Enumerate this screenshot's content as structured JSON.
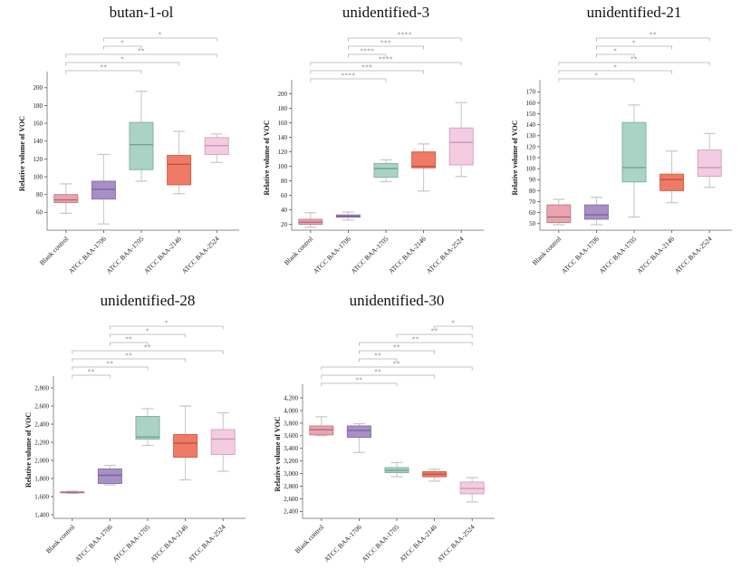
{
  "figure": {
    "ylabel": "Relative volume of VOC",
    "categories": [
      "Blank control",
      "ATCC BAA-1706",
      "ATCC BAA-1705",
      "ATCC BAA-2146",
      "ATCC BAA-2524"
    ]
  },
  "style": {
    "box_styles": [
      {
        "fill": "#e9a6b0",
        "stroke": "#c5808d",
        "median": "#b06a76"
      },
      {
        "fill": "#a890c4",
        "stroke": "#8a72ab",
        "median": "#7a629e"
      },
      {
        "fill": "#abd3c5",
        "stroke": "#82b2a2",
        "median": "#72a292"
      },
      {
        "fill": "#ef7b66",
        "stroke": "#d7604e",
        "median": "#c05444"
      },
      {
        "fill": "#f3cce2",
        "stroke": "#d6a5c5",
        "median": "#c998b8"
      }
    ],
    "whisker_color": "#c6c6c6",
    "axis_color": "#8f8f8f",
    "tick_color": "#555555",
    "text_color": "#1a1a1a",
    "bracket_color": "#b3b3b3",
    "sig_color": "#7d7d7d"
  },
  "chart_data": [
    {
      "type": "boxplot",
      "title": "butan-1-ol",
      "ylabel": "Relative volume of VOC",
      "categories": [
        "Blank control",
        "ATCC BAA-1706",
        "ATCC BAA-1705",
        "ATCC BAA-2146",
        "ATCC BAA-2524"
      ],
      "ylim": [
        40,
        212
      ],
      "ytick_values": [
        60,
        80,
        100,
        120,
        140,
        160,
        180,
        200
      ],
      "ytick_labels": [
        "60",
        "80",
        "100",
        "120",
        "140",
        "160",
        "180",
        "200"
      ],
      "boxes": [
        {
          "category": "Blank control",
          "whisker_low": 59,
          "q1": 71,
          "median": 74,
          "q3": 80,
          "whisker_high": 92
        },
        {
          "category": "ATCC BAA-1706",
          "whisker_low": 47,
          "q1": 75,
          "median": 86,
          "q3": 95,
          "whisker_high": 125
        },
        {
          "category": "ATCC BAA-1705",
          "whisker_low": 95,
          "q1": 108,
          "median": 136,
          "q3": 161,
          "whisker_high": 196
        },
        {
          "category": "ATCC BAA-2146",
          "whisker_low": 81,
          "q1": 91,
          "median": 114,
          "q3": 124,
          "whisker_high": 151
        },
        {
          "category": "ATCC BAA-2524",
          "whisker_low": 116,
          "q1": 125,
          "median": 135,
          "q3": 144,
          "whisker_high": 148
        }
      ],
      "significance_brackets": [
        {
          "from": 0,
          "to": 2,
          "label": "**",
          "group1": "Blank control",
          "group2": "ATCC BAA-1705"
        },
        {
          "from": 0,
          "to": 3,
          "label": "*",
          "group1": "Blank control",
          "group2": "ATCC BAA-2146"
        },
        {
          "from": 0,
          "to": 4,
          "label": "**",
          "group1": "Blank control",
          "group2": "ATCC BAA-2524"
        },
        {
          "from": 1,
          "to": 2,
          "label": "*",
          "group1": "ATCC BAA-1706",
          "group2": "ATCC BAA-1705"
        },
        {
          "from": 1,
          "to": 4,
          "label": "*",
          "group1": "ATCC BAA-1706",
          "group2": "ATCC BAA-2524"
        }
      ]
    },
    {
      "type": "boxplot",
      "title": "unidentified-3",
      "ylabel": "Relative volume of VOC",
      "categories": [
        "Blank control",
        "ATCC BAA-1706",
        "ATCC BAA-1705",
        "ATCC BAA-2146",
        "ATCC BAA-2524"
      ],
      "ylim": [
        12,
        212
      ],
      "ytick_values": [
        20,
        40,
        60,
        80,
        100,
        120,
        140,
        160,
        180,
        200
      ],
      "ytick_labels": [
        "20",
        "40",
        "60",
        "80",
        "100",
        "120",
        "140",
        "160",
        "180",
        "200"
      ],
      "boxes": [
        {
          "category": "Blank control",
          "whisker_low": 16,
          "q1": 20,
          "median": 23,
          "q3": 27,
          "whisker_high": 36
        },
        {
          "category": "ATCC BAA-1706",
          "whisker_low": 26,
          "q1": 30,
          "median": 31,
          "q3": 33,
          "whisker_high": 37
        },
        {
          "category": "ATCC BAA-1705",
          "whisker_low": 79,
          "q1": 85,
          "median": 97,
          "q3": 104,
          "whisker_high": 109
        },
        {
          "category": "ATCC BAA-2146",
          "whisker_low": 66,
          "q1": 98,
          "median": 100,
          "q3": 120,
          "whisker_high": 131
        },
        {
          "category": "ATCC BAA-2524",
          "whisker_low": 86,
          "q1": 102,
          "median": 133,
          "q3": 153,
          "whisker_high": 188
        }
      ],
      "significance_brackets": [
        {
          "from": 0,
          "to": 2,
          "label": "****",
          "group1": "Blank control",
          "group2": "ATCC BAA-1705"
        },
        {
          "from": 0,
          "to": 3,
          "label": "***",
          "group1": "Blank control",
          "group2": "ATCC BAA-2146"
        },
        {
          "from": 0,
          "to": 4,
          "label": "****",
          "group1": "Blank control",
          "group2": "ATCC BAA-2524"
        },
        {
          "from": 1,
          "to": 2,
          "label": "****",
          "group1": "ATCC BAA-1706",
          "group2": "ATCC BAA-1705"
        },
        {
          "from": 1,
          "to": 3,
          "label": "***",
          "group1": "ATCC BAA-1706",
          "group2": "ATCC BAA-2146"
        },
        {
          "from": 1,
          "to": 4,
          "label": "****",
          "group1": "ATCC BAA-1706",
          "group2": "ATCC BAA-2524"
        }
      ]
    },
    {
      "type": "boxplot",
      "title": "unidentified-21",
      "ylabel": "Relative volume of VOC",
      "categories": [
        "Blank control",
        "ATCC BAA-1706",
        "ATCC BAA-1705",
        "ATCC BAA-2146",
        "ATCC BAA-2524"
      ],
      "ylim": [
        44,
        176
      ],
      "ytick_values": [
        50,
        60,
        70,
        80,
        90,
        100,
        110,
        120,
        130,
        140,
        150,
        160,
        170
      ],
      "ytick_labels": [
        "50",
        "60",
        "70",
        "80",
        "90",
        "100",
        "110",
        "120",
        "130",
        "140",
        "150",
        "160",
        "170"
      ],
      "boxes": [
        {
          "category": "Blank control",
          "whisker_low": 49,
          "q1": 51,
          "median": 56,
          "q3": 67,
          "whisker_high": 72
        },
        {
          "category": "ATCC BAA-1706",
          "whisker_low": 49,
          "q1": 54,
          "median": 58,
          "q3": 67,
          "whisker_high": 74
        },
        {
          "category": "ATCC BAA-1705",
          "whisker_low": 56,
          "q1": 88,
          "median": 101,
          "q3": 142,
          "whisker_high": 158
        },
        {
          "category": "ATCC BAA-2146",
          "whisker_low": 69,
          "q1": 80,
          "median": 90,
          "q3": 95,
          "whisker_high": 116
        },
        {
          "category": "ATCC BAA-2524",
          "whisker_low": 83,
          "q1": 93,
          "median": 101,
          "q3": 117,
          "whisker_high": 132
        }
      ],
      "significance_brackets": [
        {
          "from": 0,
          "to": 2,
          "label": "*",
          "group1": "Blank control",
          "group2": "ATCC BAA-1705"
        },
        {
          "from": 0,
          "to": 3,
          "label": "*",
          "group1": "Blank control",
          "group2": "ATCC BAA-2146"
        },
        {
          "from": 0,
          "to": 4,
          "label": "**",
          "group1": "Blank control",
          "group2": "ATCC BAA-2524"
        },
        {
          "from": 1,
          "to": 2,
          "label": "*",
          "group1": "ATCC BAA-1706",
          "group2": "ATCC BAA-1705"
        },
        {
          "from": 1,
          "to": 3,
          "label": "*",
          "group1": "ATCC BAA-1706",
          "group2": "ATCC BAA-2146"
        },
        {
          "from": 1,
          "to": 4,
          "label": "**",
          "group1": "ATCC BAA-1706",
          "group2": "ATCC BAA-2524"
        }
      ]
    },
    {
      "type": "boxplot",
      "title": "unidentified-28",
      "ylabel": "Relative volume of VOC",
      "categories": [
        "Blank control",
        "ATCC BAA-1706",
        "ATCC BAA-1705",
        "ATCC BAA-2146",
        "ATCC BAA-2524"
      ],
      "ylim": [
        1360,
        2870
      ],
      "ytick_values": [
        1400,
        1600,
        1800,
        2000,
        2200,
        2400,
        2600,
        2800
      ],
      "ytick_labels": [
        "1,400",
        "1,600",
        "1,800",
        "2,000",
        "2,200",
        "2,400",
        "2,600",
        "2,800"
      ],
      "boxes": [
        {
          "category": "Blank control",
          "whisker_low": 1635,
          "q1": 1642,
          "median": 1647,
          "q3": 1652,
          "whisker_high": 1660
        },
        {
          "category": "ATCC BAA-1706",
          "whisker_low": 1730,
          "q1": 1745,
          "median": 1835,
          "q3": 1905,
          "whisker_high": 1945
        },
        {
          "category": "ATCC BAA-1705",
          "whisker_low": 2165,
          "q1": 2235,
          "median": 2258,
          "q3": 2485,
          "whisker_high": 2570
        },
        {
          "category": "ATCC BAA-2146",
          "whisker_low": 1785,
          "q1": 2035,
          "median": 2190,
          "q3": 2285,
          "whisker_high": 2600
        },
        {
          "category": "ATCC BAA-2524",
          "whisker_low": 1880,
          "q1": 2065,
          "median": 2235,
          "q3": 2340,
          "whisker_high": 2525
        }
      ],
      "significance_brackets": [
        {
          "from": 0,
          "to": 1,
          "label": "**",
          "group1": "Blank control",
          "group2": "ATCC BAA-1706"
        },
        {
          "from": 0,
          "to": 2,
          "label": "**",
          "group1": "Blank control",
          "group2": "ATCC BAA-1705"
        },
        {
          "from": 0,
          "to": 3,
          "label": "**",
          "group1": "Blank control",
          "group2": "ATCC BAA-2146"
        },
        {
          "from": 0,
          "to": 4,
          "label": "**",
          "group1": "Blank control",
          "group2": "ATCC BAA-2524"
        },
        {
          "from": 1,
          "to": 2,
          "label": "**",
          "group1": "ATCC BAA-1706",
          "group2": "ATCC BAA-1705"
        },
        {
          "from": 1,
          "to": 3,
          "label": "*",
          "group1": "ATCC BAA-1706",
          "group2": "ATCC BAA-2146"
        },
        {
          "from": 1,
          "to": 4,
          "label": "*",
          "group1": "ATCC BAA-1706",
          "group2": "ATCC BAA-2524"
        }
      ]
    },
    {
      "type": "boxplot",
      "title": "unidentified-30",
      "ylabel": "Relative volume of VOC",
      "categories": [
        "Blank control",
        "ATCC BAA-1706",
        "ATCC BAA-1705",
        "ATCC BAA-2146",
        "ATCC BAA-2524"
      ],
      "ylim": [
        2290,
        4330
      ],
      "ytick_values": [
        2400,
        2600,
        2800,
        3000,
        3200,
        3400,
        3600,
        3800,
        4000,
        4200
      ],
      "ytick_labels": [
        "2,400",
        "2,600",
        "2,800",
        "3,000",
        "3,200",
        "3,400",
        "3,600",
        "3,800",
        "4,000",
        "4,200"
      ],
      "boxes": [
        {
          "category": "Blank control",
          "whisker_low": 3600,
          "q1": 3615,
          "median": 3695,
          "q3": 3755,
          "whisker_high": 3900
        },
        {
          "category": "ATCC BAA-1706",
          "whisker_low": 3335,
          "q1": 3575,
          "median": 3685,
          "q3": 3755,
          "whisker_high": 3790
        },
        {
          "category": "ATCC BAA-1705",
          "whisker_low": 2950,
          "q1": 3015,
          "median": 3050,
          "q3": 3095,
          "whisker_high": 3175
        },
        {
          "category": "ATCC BAA-2146",
          "whisker_low": 2880,
          "q1": 2950,
          "median": 2990,
          "q3": 3030,
          "whisker_high": 3070
        },
        {
          "category": "ATCC BAA-2524",
          "whisker_low": 2550,
          "q1": 2680,
          "median": 2765,
          "q3": 2865,
          "whisker_high": 2935
        }
      ],
      "significance_brackets": [
        {
          "from": 0,
          "to": 2,
          "label": "**",
          "group1": "Blank control",
          "group2": "ATCC BAA-1705"
        },
        {
          "from": 0,
          "to": 3,
          "label": "**",
          "group1": "Blank control",
          "group2": "ATCC BAA-2146"
        },
        {
          "from": 0,
          "to": 4,
          "label": "**",
          "group1": "Blank control",
          "group2": "ATCC BAA-2524"
        },
        {
          "from": 1,
          "to": 2,
          "label": "**",
          "group1": "ATCC BAA-1706",
          "group2": "ATCC BAA-1705"
        },
        {
          "from": 1,
          "to": 3,
          "label": "**",
          "group1": "ATCC BAA-1706",
          "group2": "ATCC BAA-2146"
        },
        {
          "from": 1,
          "to": 4,
          "label": "**",
          "group1": "ATCC BAA-1706",
          "group2": "ATCC BAA-2524"
        },
        {
          "from": 2,
          "to": 4,
          "label": "**",
          "group1": "ATCC BAA-1705",
          "group2": "ATCC BAA-2524"
        },
        {
          "from": 3,
          "to": 4,
          "label": "*",
          "group1": "ATCC BAA-2146",
          "group2": "ATCC BAA-2524"
        }
      ]
    }
  ]
}
